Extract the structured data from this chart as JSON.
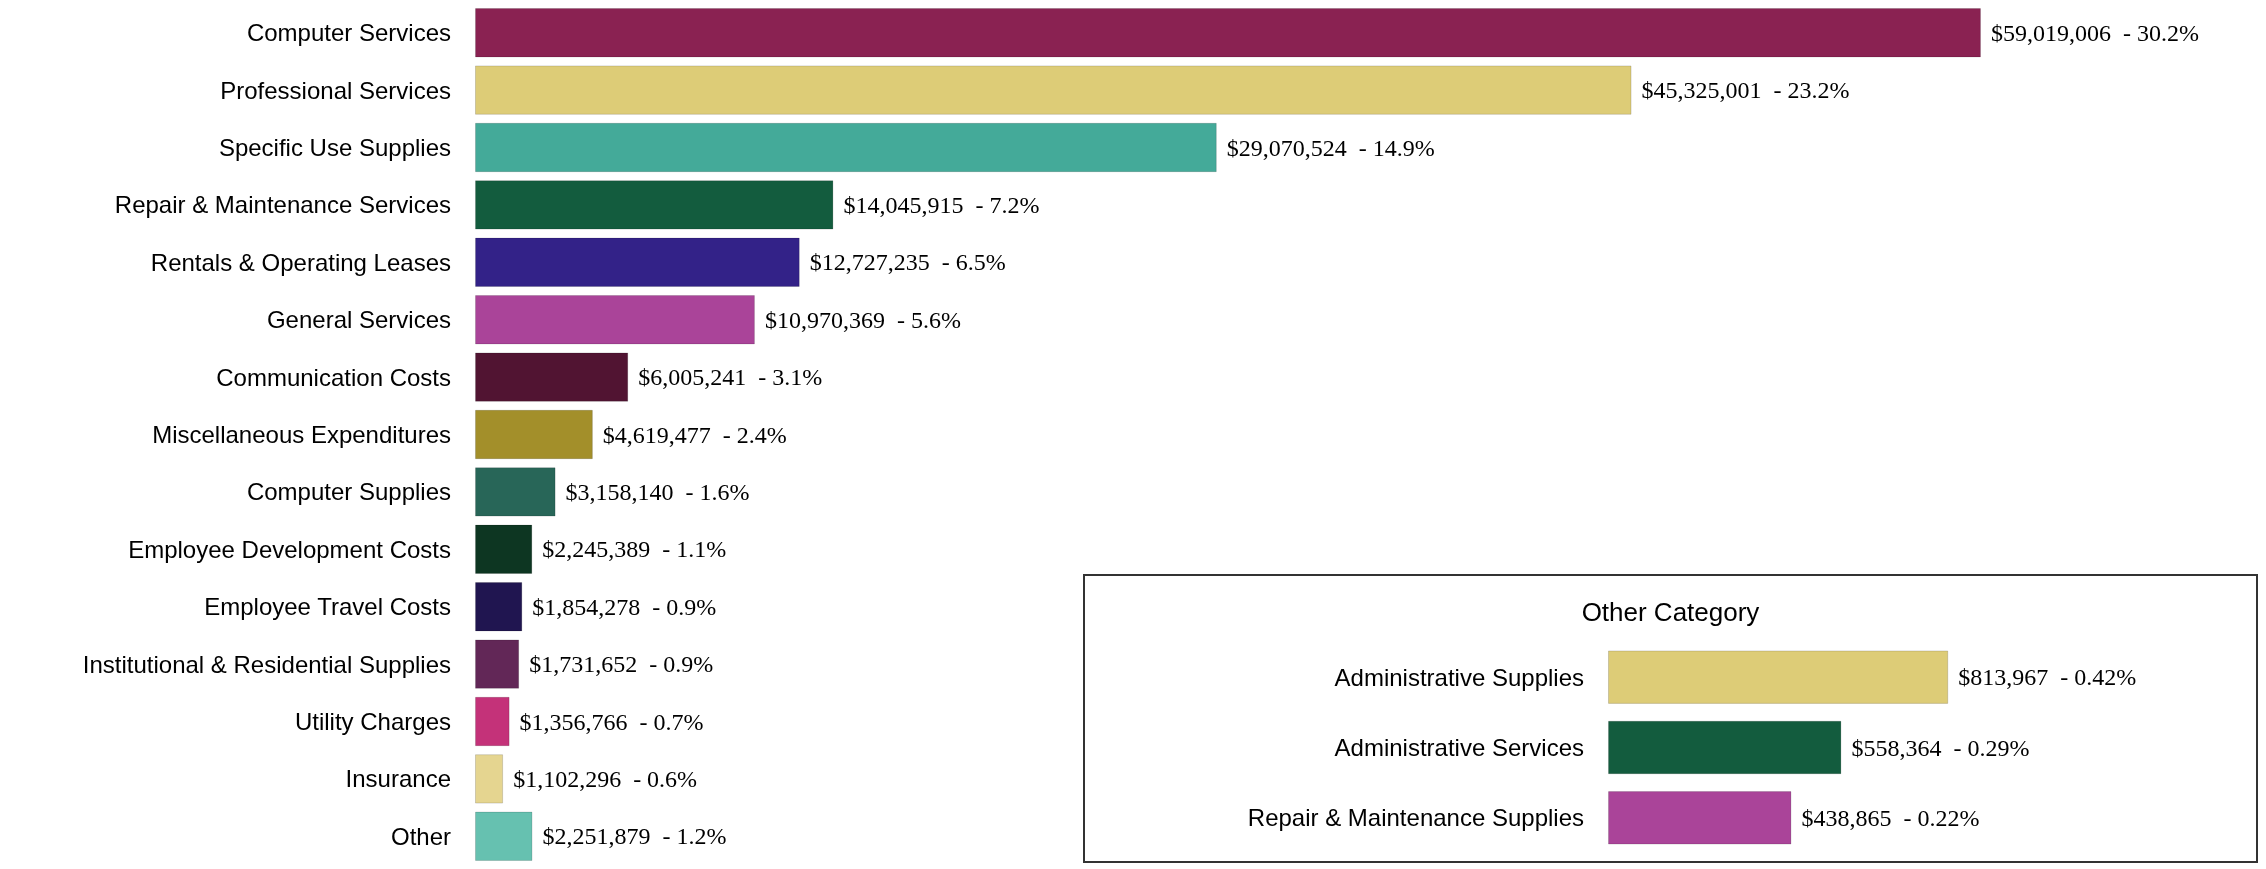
{
  "chart_data": [
    {
      "type": "bar",
      "orientation": "horizontal",
      "categories": [
        "Computer Services",
        "Professional Services",
        "Specific Use Supplies",
        "Repair & Maintenance Services",
        "Rentals & Operating Leases",
        "General Services",
        "Communication Costs",
        "Miscellaneous Expenditures",
        "Computer Supplies",
        "Employee Development Costs",
        "Employee Travel Costs",
        "Institutional & Residential Supplies",
        "Utility Charges",
        "Insurance",
        "Other"
      ],
      "values": [
        59019006,
        45325001,
        29070524,
        14045915,
        12727235,
        10970369,
        6005241,
        4619477,
        3158140,
        2245389,
        1854278,
        1731652,
        1356766,
        1102296,
        2251879
      ],
      "colors": [
        "#8a2252",
        "#ddcc77",
        "#44aa99",
        "#135c3e",
        "#332288",
        "#aa4499",
        "#511432",
        "#a38f2a",
        "#286658",
        "#0d3622",
        "#201550",
        "#622757",
        "#c43279",
        "#e5d590",
        "#66c1b0"
      ],
      "value_labels": [
        "$59,019,006  - 30.2%",
        "$45,325,001  - 23.2%",
        "$29,070,524  - 14.9%",
        "$14,045,915  - 7.2%",
        "$12,727,235  - 6.5%",
        "$10,970,369  - 5.6%",
        "$6,005,241  - 3.1%",
        "$4,619,477  - 2.4%",
        "$3,158,140  - 1.6%",
        "$2,245,389  - 1.1%",
        "$1,854,278  - 0.9%",
        "$1,731,652  - 0.9%",
        "$1,356,766  - 0.7%",
        "$1,102,296  - 0.6%",
        "$2,251,879  - 1.2%"
      ]
    },
    {
      "type": "bar",
      "orientation": "horizontal",
      "title": "Other Category",
      "categories": [
        "Administrative Supplies",
        "Administrative Services",
        "Repair & Maintenance Supplies"
      ],
      "values": [
        813967,
        558364,
        438865
      ],
      "colors": [
        "#ddcc77",
        "#135c3e",
        "#aa4499"
      ],
      "value_labels": [
        "$813,967  - 0.42%",
        "$558,364  - 0.29%",
        "$438,865  - 0.22%"
      ]
    }
  ]
}
